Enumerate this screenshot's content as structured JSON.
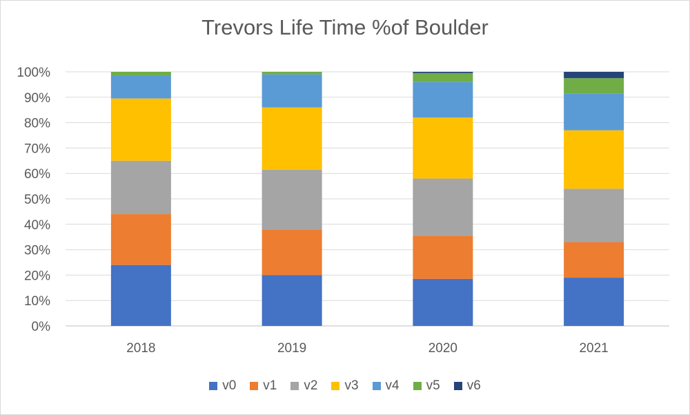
{
  "chart_data": {
    "type": "bar",
    "stacked": true,
    "percent_stacked": true,
    "title": "Trevors Life Time %of Boulder",
    "categories": [
      "2018",
      "2019",
      "2020",
      "2021"
    ],
    "y_ticks": [
      "0%",
      "10%",
      "20%",
      "30%",
      "40%",
      "50%",
      "60%",
      "70%",
      "80%",
      "90%",
      "100%"
    ],
    "ylim": [
      0,
      100
    ],
    "grid": true,
    "legend_position": "bottom",
    "series": [
      {
        "name": "v0",
        "color": "#4472C4",
        "values": [
          24,
          20,
          18.5,
          19
        ]
      },
      {
        "name": "v1",
        "color": "#ED7D31",
        "values": [
          20,
          18,
          17,
          14
        ]
      },
      {
        "name": "v2",
        "color": "#A5A5A5",
        "values": [
          21,
          23.5,
          22.5,
          21
        ]
      },
      {
        "name": "v3",
        "color": "#FFC000",
        "values": [
          24.5,
          24.5,
          24,
          23
        ]
      },
      {
        "name": "v4",
        "color": "#5B9BD5",
        "values": [
          9,
          13,
          14,
          14.5
        ]
      },
      {
        "name": "v5",
        "color": "#70AD47",
        "values": [
          1.5,
          1,
          3.5,
          6
        ]
      },
      {
        "name": "v6",
        "color": "#264478",
        "values": [
          0,
          0,
          0.5,
          2.5
        ]
      }
    ]
  }
}
